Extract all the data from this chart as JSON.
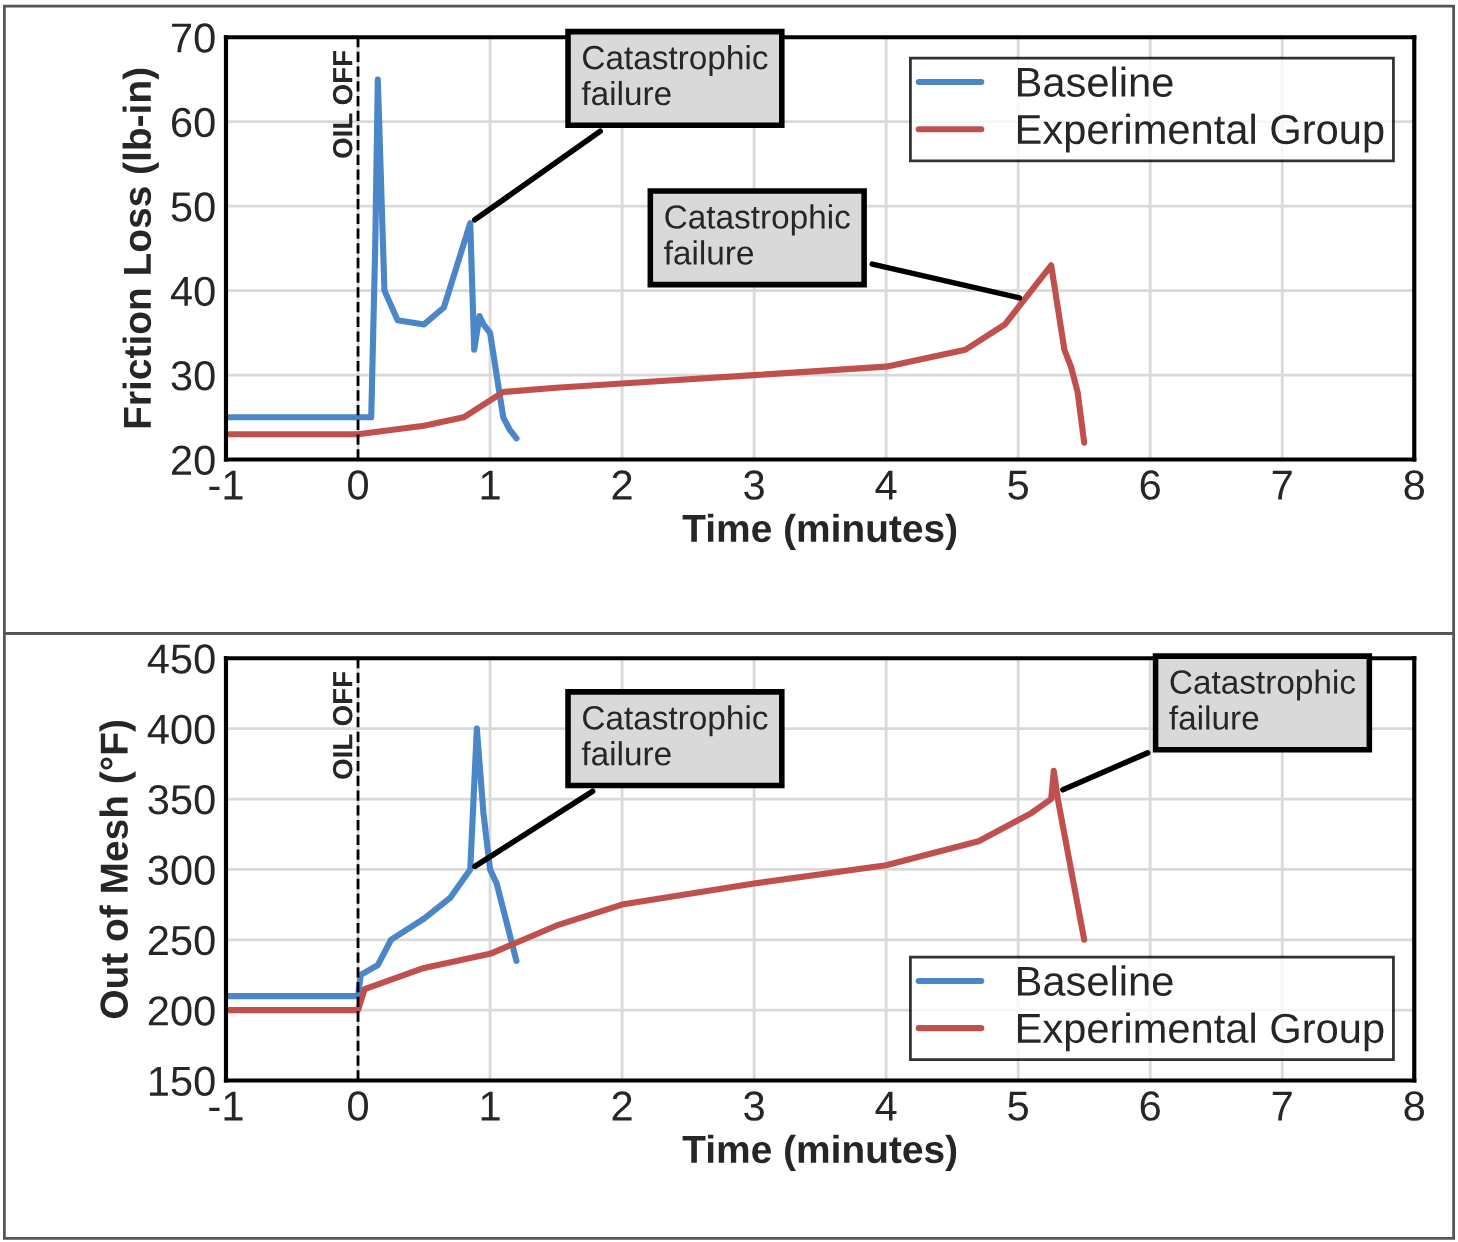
{
  "chart_data": [
    {
      "type": "line",
      "xlabel": "Time (minutes)",
      "ylabel": "Friction Loss (lb-in)",
      "xlim": [
        -1,
        8
      ],
      "xticks": [
        -1,
        0,
        1,
        2,
        3,
        4,
        5,
        6,
        7,
        8
      ],
      "ylim": [
        20,
        70
      ],
      "yticks": [
        20,
        30,
        40,
        50,
        60,
        70
      ],
      "grid": true,
      "legend": "top right",
      "line_style": "solid",
      "series": [
        {
          "name": "Baseline",
          "color": "#4a86c8",
          "x": [
            -1,
            0.1,
            0.13,
            0.15,
            0.2,
            0.3,
            0.5,
            0.65,
            0.75,
            0.85,
            0.88,
            0.92,
            0.95,
            1.0,
            1.05,
            1.1,
            1.15,
            1.2
          ],
          "values": [
            25,
            25,
            45,
            65,
            40,
            36.5,
            36,
            38,
            43,
            48,
            33,
            37,
            36,
            35,
            30,
            25,
            23.5,
            22.5
          ]
        },
        {
          "name": "Experimental Group",
          "color": "#c0504d",
          "x": [
            -1,
            0,
            0.5,
            0.8,
            1.1,
            1.5,
            2,
            3,
            4,
            4.6,
            4.9,
            5.1,
            5.25,
            5.3,
            5.35,
            5.4,
            5.45,
            5.5
          ],
          "values": [
            23,
            23,
            24,
            25,
            28,
            28.5,
            29,
            30,
            31,
            33,
            36,
            40,
            43,
            38,
            33,
            31,
            28,
            22
          ]
        }
      ],
      "ref_lines": [
        {
          "axis": "x",
          "value": 0,
          "label": "OIL OFF",
          "color": "#000000",
          "line_style": "dashed"
        }
      ],
      "annotations": [
        {
          "text": "Catastrophic\nfailure",
          "x": 0.85,
          "y": 48
        },
        {
          "text": "Catastrophic\nfailure",
          "x": 5.05,
          "y": 39
        }
      ]
    },
    {
      "type": "line",
      "xlabel": "Time (minutes)",
      "ylabel": "Out of Mesh (°F)",
      "xlim": [
        -1,
        8
      ],
      "xticks": [
        -1,
        0,
        1,
        2,
        3,
        4,
        5,
        6,
        7,
        8
      ],
      "ylim": [
        150,
        450
      ],
      "yticks": [
        150,
        200,
        250,
        300,
        350,
        400,
        450
      ],
      "grid": true,
      "legend": "bottom right",
      "line_style": "solid",
      "series": [
        {
          "name": "Baseline",
          "color": "#4a86c8",
          "x": [
            -1,
            0,
            0.02,
            0.15,
            0.25,
            0.5,
            0.7,
            0.85,
            0.9,
            0.95,
            1.0,
            1.05,
            1.2
          ],
          "values": [
            210,
            210,
            225,
            232,
            250,
            265,
            280,
            300,
            400,
            340,
            300,
            290,
            235
          ]
        },
        {
          "name": "Experimental Group",
          "color": "#c0504d",
          "x": [
            -1,
            0,
            0.05,
            0.5,
            1,
            1.5,
            2,
            3,
            4,
            4.7,
            5.1,
            5.25,
            5.27,
            5.3,
            5.4,
            5.5
          ],
          "values": [
            200,
            200,
            215,
            230,
            240,
            260,
            275,
            290,
            303,
            320,
            340,
            350,
            370,
            350,
            300,
            250
          ]
        }
      ],
      "ref_lines": [
        {
          "axis": "x",
          "value": 0,
          "label": "OIL OFF",
          "color": "#000000",
          "line_style": "dashed"
        }
      ],
      "annotations": [
        {
          "text": "Catastrophic\nfailure",
          "x": 0.85,
          "y": 300
        },
        {
          "text": "Catastrophic\nfailure",
          "x": 5.3,
          "y": 355
        }
      ]
    }
  ]
}
